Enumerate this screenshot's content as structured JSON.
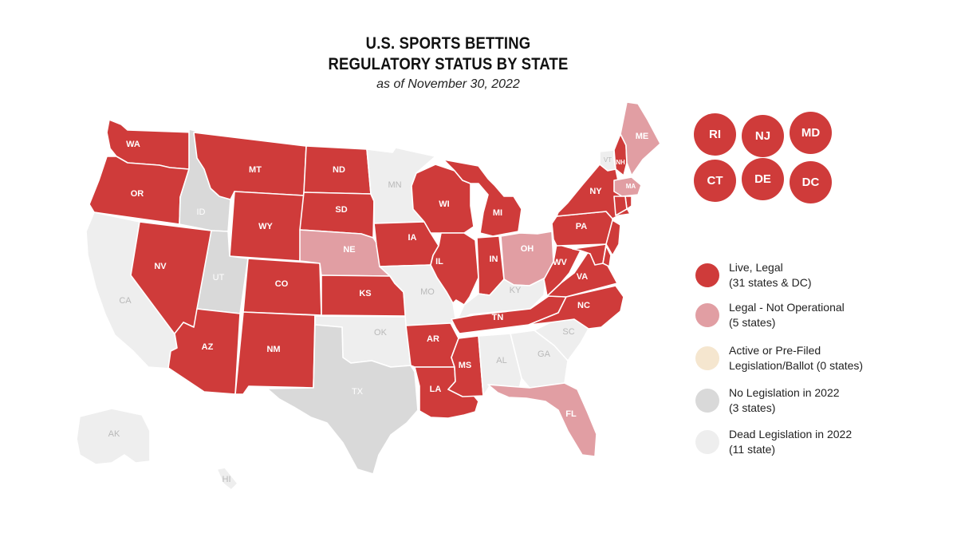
{
  "title": {
    "line1": "U.S. SPORTS BETTING",
    "line2": "REGULATORY STATUS BY STATE",
    "subtitle": "as of November 30, 2022"
  },
  "colors": {
    "live": "#cf3b3a",
    "pending": "#e19ea3",
    "active": "#f5e6cf",
    "none": "#d9d9d9",
    "dead": "#eeeeee"
  },
  "legend": [
    {
      "category": "live",
      "line1": "Live, Legal",
      "line2": "(31 states & DC)"
    },
    {
      "category": "pending",
      "line1": "Legal - Not Operational",
      "line2": "(5 states)"
    },
    {
      "category": "active",
      "line1": "Active or Pre-Filed",
      "line2": "Legislation/Ballot (0 states)"
    },
    {
      "category": "none",
      "line1": "No Legislation in 2022",
      "line2": "(3 states)"
    },
    {
      "category": "dead",
      "line1": "Dead Legislation in 2022",
      "line2": "(11 state)"
    }
  ],
  "small_states": [
    {
      "abbr": "RI",
      "category": "live"
    },
    {
      "abbr": "NJ",
      "category": "live"
    },
    {
      "abbr": "MD",
      "category": "live"
    },
    {
      "abbr": "CT",
      "category": "live"
    },
    {
      "abbr": "DE",
      "category": "live"
    },
    {
      "abbr": "DC",
      "category": "live"
    }
  ],
  "states": [
    {
      "abbr": "WA",
      "category": "live"
    },
    {
      "abbr": "OR",
      "category": "live"
    },
    {
      "abbr": "CA",
      "category": "dead"
    },
    {
      "abbr": "NV",
      "category": "live"
    },
    {
      "abbr": "ID",
      "category": "none"
    },
    {
      "abbr": "MT",
      "category": "live"
    },
    {
      "abbr": "WY",
      "category": "live"
    },
    {
      "abbr": "UT",
      "category": "none"
    },
    {
      "abbr": "AZ",
      "category": "live"
    },
    {
      "abbr": "CO",
      "category": "live"
    },
    {
      "abbr": "NM",
      "category": "live"
    },
    {
      "abbr": "ND",
      "category": "live"
    },
    {
      "abbr": "SD",
      "category": "live"
    },
    {
      "abbr": "NE",
      "category": "pending"
    },
    {
      "abbr": "KS",
      "category": "live"
    },
    {
      "abbr": "OK",
      "category": "dead"
    },
    {
      "abbr": "TX",
      "category": "none"
    },
    {
      "abbr": "MN",
      "category": "dead"
    },
    {
      "abbr": "IA",
      "category": "live"
    },
    {
      "abbr": "MO",
      "category": "dead"
    },
    {
      "abbr": "AR",
      "category": "live"
    },
    {
      "abbr": "LA",
      "category": "live"
    },
    {
      "abbr": "WI",
      "category": "live"
    },
    {
      "abbr": "IL",
      "category": "live"
    },
    {
      "abbr": "MI",
      "category": "live"
    },
    {
      "abbr": "IN",
      "category": "live"
    },
    {
      "abbr": "OH",
      "category": "pending"
    },
    {
      "abbr": "KY",
      "category": "dead"
    },
    {
      "abbr": "TN",
      "category": "live"
    },
    {
      "abbr": "MS",
      "category": "live"
    },
    {
      "abbr": "AL",
      "category": "dead"
    },
    {
      "abbr": "GA",
      "category": "dead"
    },
    {
      "abbr": "FL",
      "category": "pending"
    },
    {
      "abbr": "SC",
      "category": "dead"
    },
    {
      "abbr": "NC",
      "category": "live"
    },
    {
      "abbr": "VA",
      "category": "live"
    },
    {
      "abbr": "WV",
      "category": "live"
    },
    {
      "abbr": "PA",
      "category": "live"
    },
    {
      "abbr": "NY",
      "category": "live"
    },
    {
      "abbr": "VT",
      "category": "dead"
    },
    {
      "abbr": "NH",
      "category": "live"
    },
    {
      "abbr": "ME",
      "category": "pending"
    },
    {
      "abbr": "MA",
      "category": "pending"
    },
    {
      "abbr": "AK",
      "category": "dead"
    },
    {
      "abbr": "HI",
      "category": "dead"
    }
  ]
}
